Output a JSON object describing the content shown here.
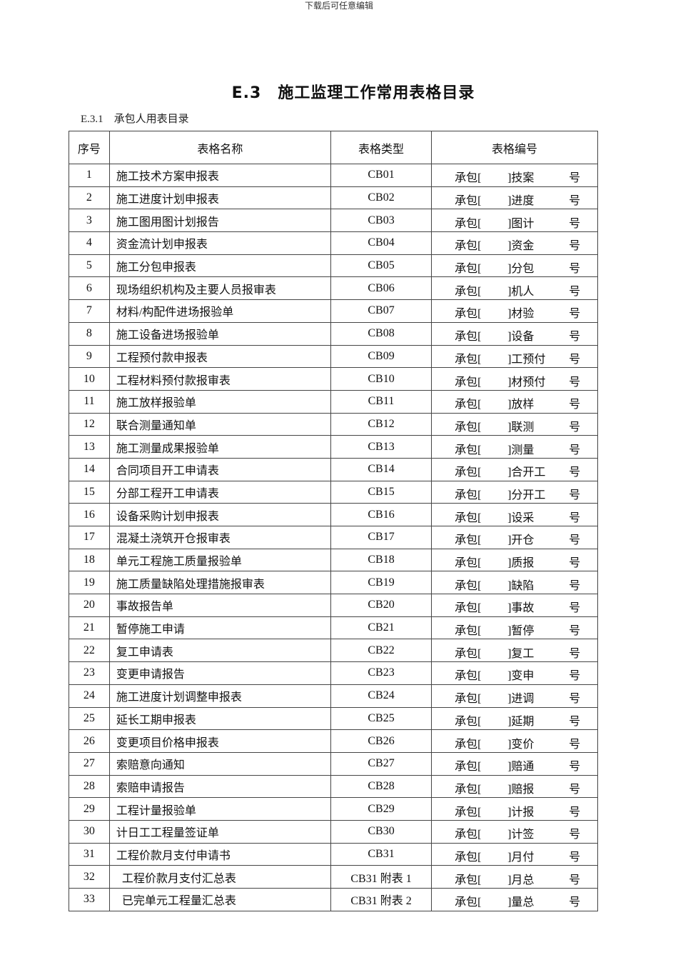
{
  "header_note": "下载后可任意编辑",
  "title": "E.3　施工监理工作常用表格目录",
  "subtitle": "E.3.1　承包人用表目录",
  "table": {
    "headers": [
      "序号",
      "表格名称",
      "表格类型",
      "表格编号"
    ],
    "code_prefix": "承包[",
    "code_suffix": "号",
    "rows": [
      {
        "no": "1",
        "name": "施工技术方案申报表",
        "type": "CB01",
        "code": "]技案"
      },
      {
        "no": "2",
        "name": "施工进度计划申报表",
        "type": "CB02",
        "code": "]进度"
      },
      {
        "no": "3",
        "name": "施工图用图计划报告",
        "type": "CB03",
        "code": "]图计"
      },
      {
        "no": "4",
        "name": "资金流计划申报表",
        "type": "CB04",
        "code": "]资金"
      },
      {
        "no": "5",
        "name": "施工分包申报表",
        "type": "CB05",
        "code": "]分包"
      },
      {
        "no": "6",
        "name": "现场组织机构及主要人员报审表",
        "type": "CB06",
        "code": "]机人"
      },
      {
        "no": "7",
        "name": "材料/构配件进场报验单",
        "type": "CB07",
        "code": "]材验"
      },
      {
        "no": "8",
        "name": "施工设备进场报验单",
        "type": "CB08",
        "code": "]设备"
      },
      {
        "no": "9",
        "name": "工程预付款申报表",
        "type": "CB09",
        "code": "]工预付"
      },
      {
        "no": "10",
        "name": "工程材料预付款报审表",
        "type": "CB10",
        "code": "]材预付"
      },
      {
        "no": "11",
        "name": "施工放样报验单",
        "type": "CB11",
        "code": "]放样"
      },
      {
        "no": "12",
        "name": "联合测量通知单",
        "type": "CB12",
        "code": "]联测"
      },
      {
        "no": "13",
        "name": "施工测量成果报验单",
        "type": "CB13",
        "code": "]测量"
      },
      {
        "no": "14",
        "name": "合同项目开工申请表",
        "type": "CB14",
        "code": "]合开工"
      },
      {
        "no": "15",
        "name": "分部工程开工申请表",
        "type": "CB15",
        "code": "]分开工"
      },
      {
        "no": "16",
        "name": "设备采购计划申报表",
        "type": "CB16",
        "code": "]设采"
      },
      {
        "no": "17",
        "name": "混凝土浇筑开仓报审表",
        "type": "CB17",
        "code": "]开仓"
      },
      {
        "no": "18",
        "name": "单元工程施工质量报验单",
        "type": "CB18",
        "code": "]质报"
      },
      {
        "no": "19",
        "name": "施工质量缺陷处理措施报审表",
        "type": "CB19",
        "code": "]缺陷"
      },
      {
        "no": "20",
        "name": "事故报告单",
        "type": "CB20",
        "code": "]事故"
      },
      {
        "no": "21",
        "name": "暂停施工申请",
        "type": "CB21",
        "code": "]暂停"
      },
      {
        "no": "22",
        "name": "复工申请表",
        "type": "CB22",
        "code": "]复工"
      },
      {
        "no": "23",
        "name": "变更申请报告",
        "type": "CB23",
        "code": "]变申"
      },
      {
        "no": "24",
        "name": "施工进度计划调整申报表",
        "type": "CB24",
        "code": "]进调"
      },
      {
        "no": "25",
        "name": "延长工期申报表",
        "type": "CB25",
        "code": "]延期"
      },
      {
        "no": "26",
        "name": "变更项目价格申报表",
        "type": "CB26",
        "code": "]变价"
      },
      {
        "no": "27",
        "name": "索赔意向通知",
        "type": "CB27",
        "code": "]赔通"
      },
      {
        "no": "28",
        "name": "索赔申请报告",
        "type": "CB28",
        "code": "]赔报"
      },
      {
        "no": "29",
        "name": "工程计量报验单",
        "type": "CB29",
        "code": "]计报"
      },
      {
        "no": "30",
        "name": "计日工工程量签证单",
        "type": "CB30",
        "code": "]计签"
      },
      {
        "no": "31",
        "name": "工程价款月支付申请书",
        "type": "CB31",
        "code": "]月付"
      },
      {
        "no": "32",
        "name": "工程价款月支付汇总表",
        "type": "CB31 附表 1",
        "code": "]月总",
        "indent": true
      },
      {
        "no": "33",
        "name": "已完单元工程量汇总表",
        "type": "CB31 附表 2",
        "code": "]量总",
        "indent": true
      }
    ]
  }
}
